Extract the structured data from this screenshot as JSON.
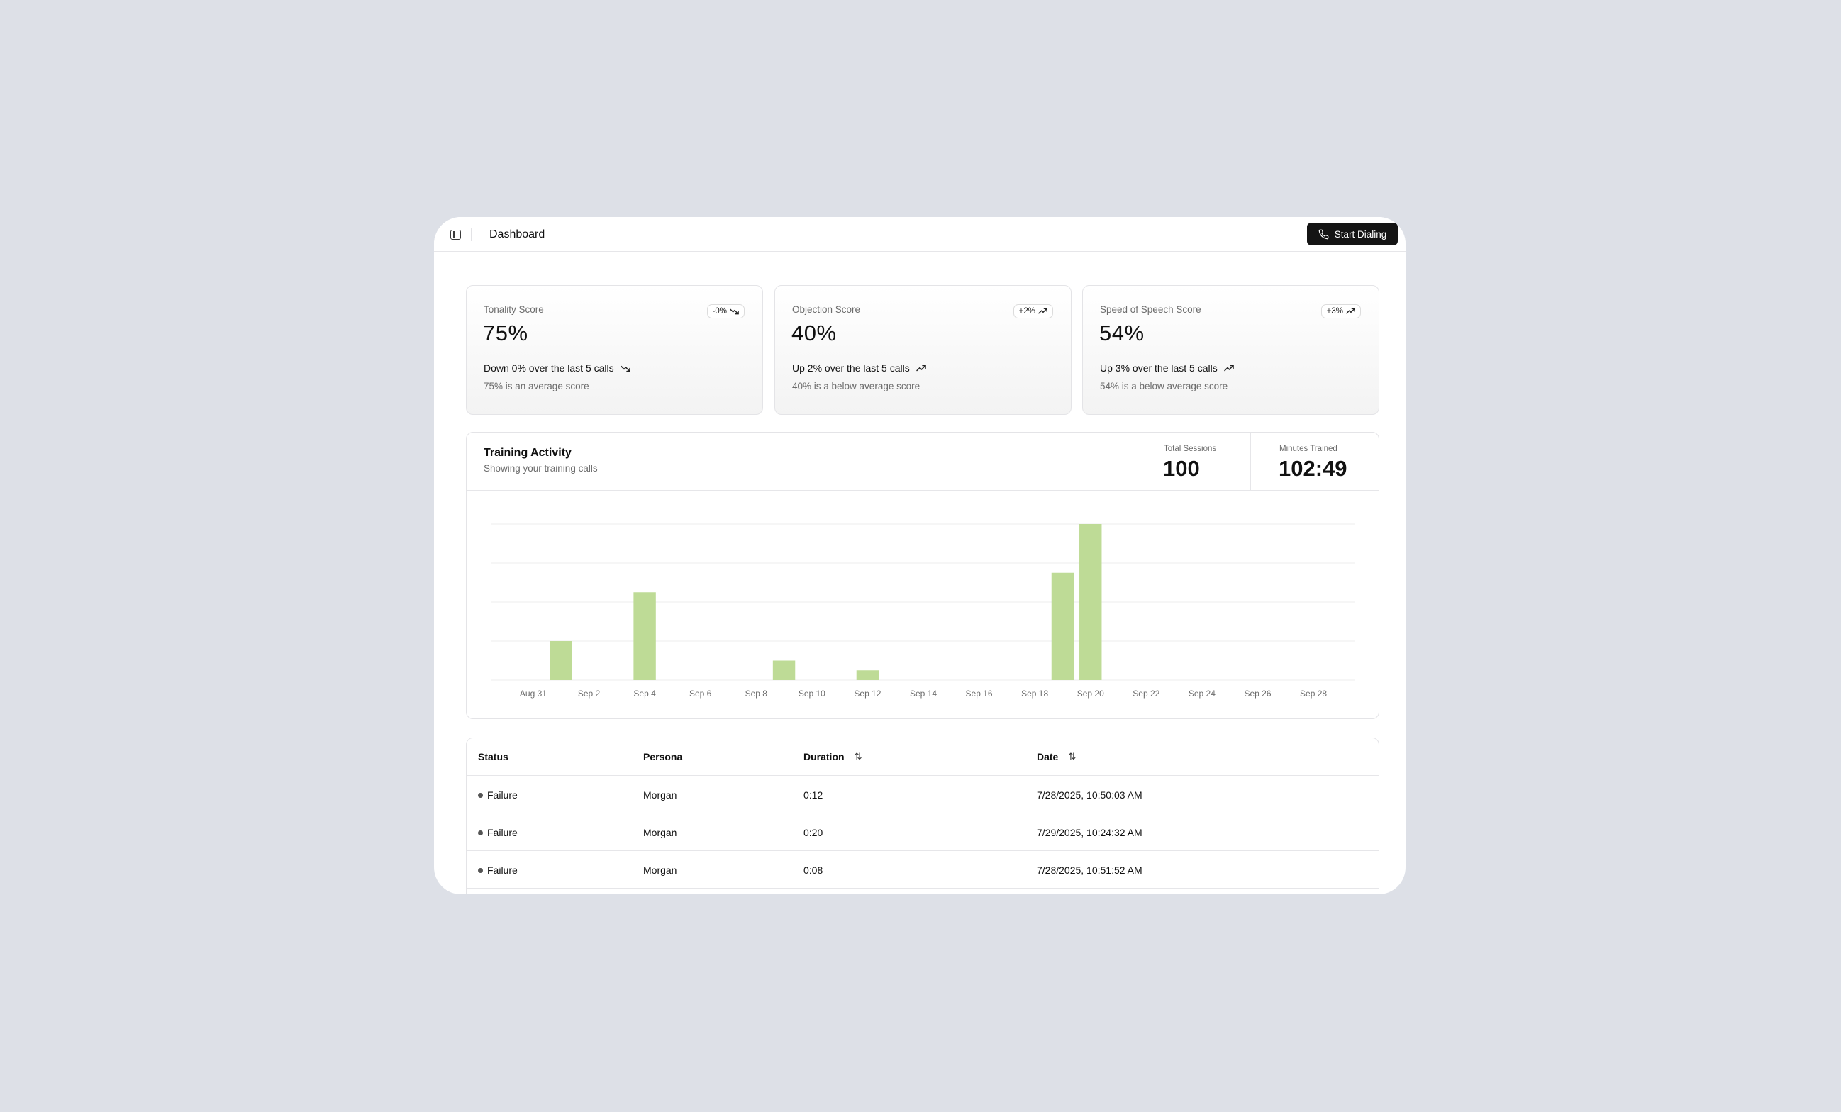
{
  "header": {
    "title": "Dashboard",
    "start_button": "Start Dialing"
  },
  "colors": {
    "bar": "#bedb96",
    "button_bg": "#141414",
    "page_bg": "#dde0e7"
  },
  "cards": [
    {
      "label": "Tonality Score",
      "value": "75%",
      "badge": "-0%",
      "badge_icon": "trend-down-icon",
      "trend": "Down 0% over the last 5 calls",
      "note": "75% is an average score"
    },
    {
      "label": "Objection Score",
      "value": "40%",
      "badge": "+2%",
      "badge_icon": "trend-up-icon",
      "trend": "Up 2% over the last 5 calls",
      "note": "40% is a below average score"
    },
    {
      "label": "Speed of Speech Score",
      "value": "54%",
      "badge": "+3%",
      "badge_icon": "trend-up-icon",
      "trend": "Up 3% over the last 5 calls",
      "note": "54% is a below average score"
    }
  ],
  "activity": {
    "title": "Training Activity",
    "subtitle": "Showing your training calls",
    "total_sessions_label": "Total Sessions",
    "total_sessions": "100",
    "minutes_label": "Minutes Trained",
    "minutes": "102:49"
  },
  "chart_data": {
    "type": "bar",
    "title": "",
    "xlabel": "",
    "ylabel": "",
    "grid": true,
    "ylim": [
      0,
      8
    ],
    "x_ticks": [
      "Aug 31",
      "Sep 2",
      "Sep 4",
      "Sep 6",
      "Sep 8",
      "Sep 10",
      "Sep 12",
      "Sep 14",
      "Sep 16",
      "Sep 18",
      "Sep 20",
      "Sep 22",
      "Sep 24",
      "Sep 26",
      "Sep 28"
    ],
    "categories": [
      "Aug 30",
      "Aug 31",
      "Sep 1",
      "Sep 2",
      "Sep 3",
      "Sep 4",
      "Sep 5",
      "Sep 6",
      "Sep 7",
      "Sep 8",
      "Sep 9",
      "Sep 10",
      "Sep 11",
      "Sep 12",
      "Sep 13",
      "Sep 14",
      "Sep 15",
      "Sep 16",
      "Sep 17",
      "Sep 18",
      "Sep 19",
      "Sep 20",
      "Sep 21",
      "Sep 22",
      "Sep 23",
      "Sep 24",
      "Sep 25",
      "Sep 26",
      "Sep 27",
      "Sep 28",
      "Sep 29"
    ],
    "values": [
      0,
      0,
      2,
      0,
      0,
      4.5,
      0,
      0,
      0,
      0,
      1,
      0,
      0,
      0.5,
      0,
      0,
      0,
      0,
      0,
      0,
      5.5,
      8,
      0,
      0,
      0,
      0,
      0,
      0,
      0,
      0,
      0
    ]
  },
  "table": {
    "columns": [
      {
        "label": "Status",
        "sortable": false
      },
      {
        "label": "Persona",
        "sortable": false
      },
      {
        "label": "Duration",
        "sortable": true
      },
      {
        "label": "Date",
        "sortable": true
      }
    ],
    "rows": [
      {
        "status": "Failure",
        "persona": "Morgan",
        "duration": "0:12",
        "date": "7/28/2025, 10:50:03 AM"
      },
      {
        "status": "Failure",
        "persona": "Morgan",
        "duration": "0:20",
        "date": "7/29/2025, 10:24:32 AM"
      },
      {
        "status": "Failure",
        "persona": "Morgan",
        "duration": "0:08",
        "date": "7/28/2025, 10:51:52 AM"
      }
    ]
  }
}
